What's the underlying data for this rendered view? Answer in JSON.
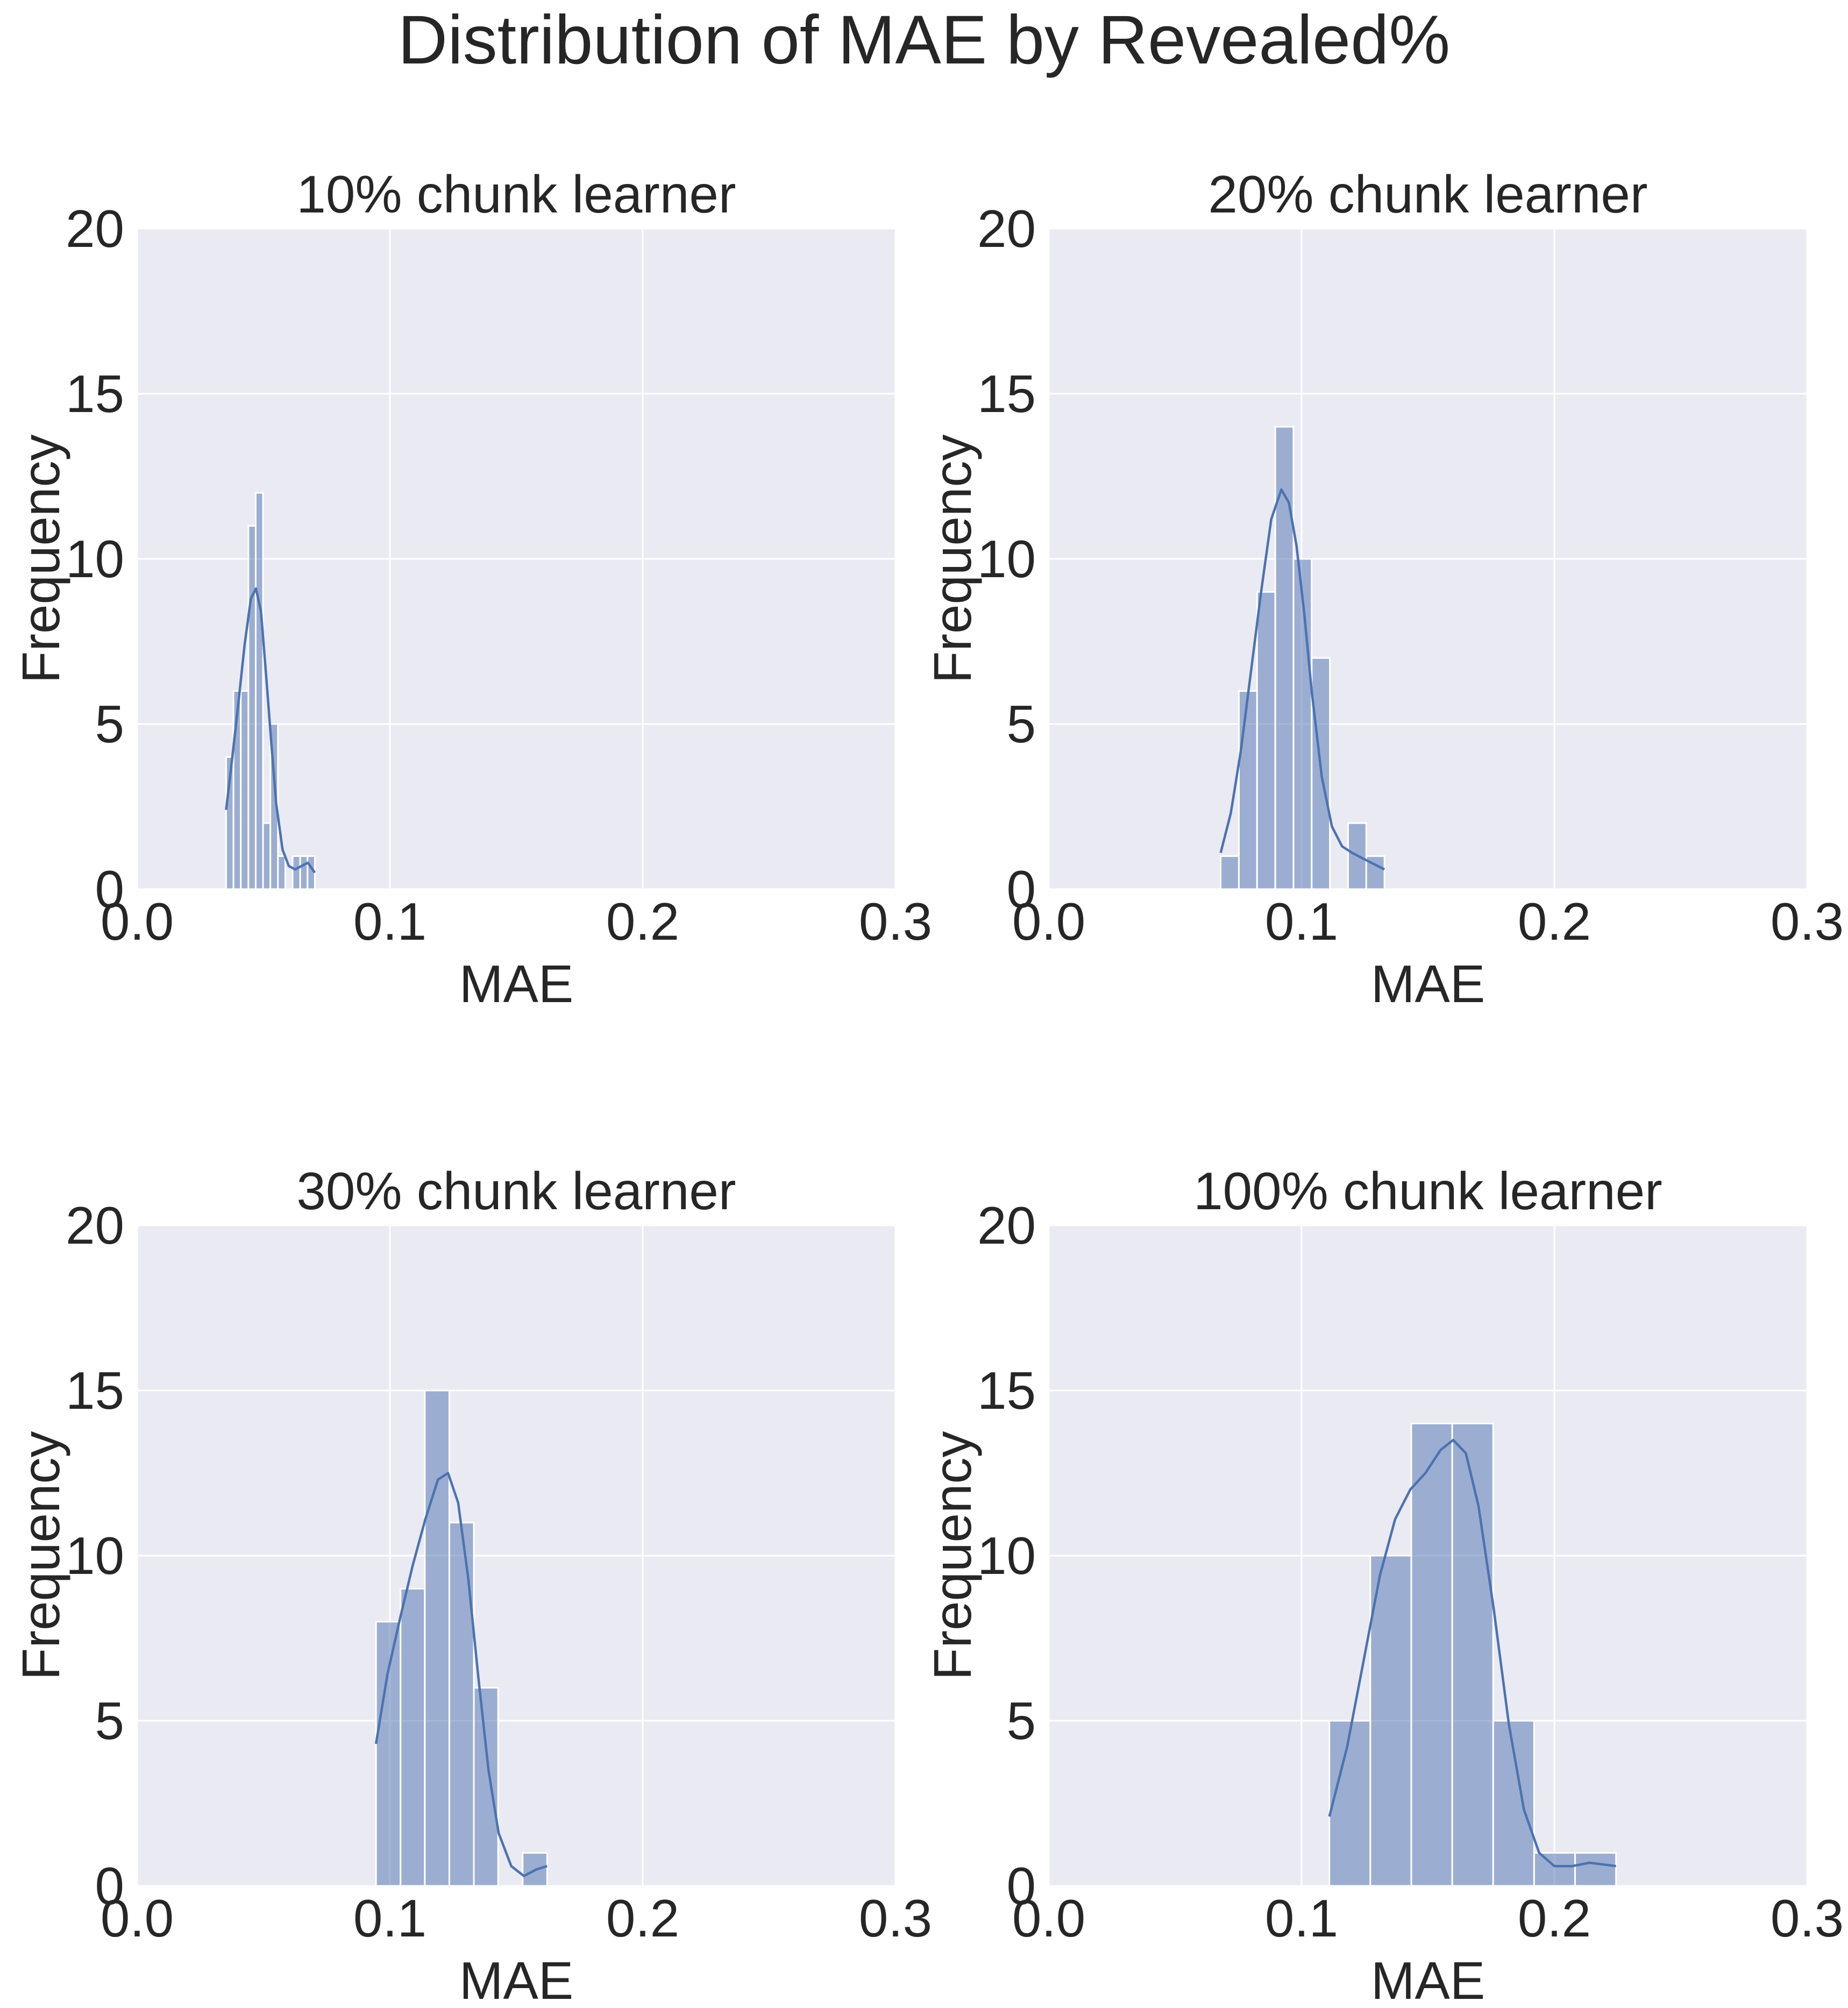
{
  "figure": {
    "title": "Distribution of MAE by Revealed%",
    "colors": {
      "background": "#ffffff",
      "axes_face": "#eaeaf2",
      "grid": "#ffffff",
      "bar_fill": "#4c72b0",
      "bar_opacity": 0.5,
      "kde_line": "#4c72b0",
      "text": "#262626"
    }
  },
  "chart_data": [
    {
      "type": "bar",
      "subtype": "histogram_with_kde",
      "title": "10% chunk learner",
      "xlabel": "MAE",
      "ylabel": "Frequency",
      "xlim": [
        0.0,
        0.3
      ],
      "ylim": [
        0,
        20
      ],
      "xticks": [
        "0.0",
        "0.1",
        "0.2",
        "0.3"
      ],
      "yticks": [
        "0",
        "5",
        "10",
        "15",
        "20"
      ],
      "grid": true,
      "bins": [
        {
          "x0": 0.0352,
          "x1": 0.0381,
          "count": 4
        },
        {
          "x0": 0.0381,
          "x1": 0.041,
          "count": 6
        },
        {
          "x0": 0.041,
          "x1": 0.044,
          "count": 6
        },
        {
          "x0": 0.044,
          "x1": 0.0469,
          "count": 11
        },
        {
          "x0": 0.0469,
          "x1": 0.0498,
          "count": 12
        },
        {
          "x0": 0.0498,
          "x1": 0.0527,
          "count": 2
        },
        {
          "x0": 0.0527,
          "x1": 0.0557,
          "count": 5
        },
        {
          "x0": 0.0557,
          "x1": 0.0586,
          "count": 1
        },
        {
          "x0": 0.0586,
          "x1": 0.0615,
          "count": 0
        },
        {
          "x0": 0.0615,
          "x1": 0.0645,
          "count": 1
        },
        {
          "x0": 0.0645,
          "x1": 0.0674,
          "count": 1
        },
        {
          "x0": 0.0674,
          "x1": 0.0703,
          "count": 1
        }
      ],
      "kde": {
        "x": [
          0.0352,
          0.0375,
          0.04,
          0.0425,
          0.045,
          0.047,
          0.049,
          0.051,
          0.053,
          0.055,
          0.0575,
          0.06,
          0.0625,
          0.065,
          0.0675,
          0.0703
        ],
        "y": [
          2.4,
          3.9,
          5.6,
          7.4,
          8.8,
          9.1,
          8.4,
          6.5,
          4.5,
          2.6,
          1.2,
          0.7,
          0.6,
          0.7,
          0.8,
          0.5
        ]
      }
    },
    {
      "type": "bar",
      "subtype": "histogram_with_kde",
      "title": "20% chunk learner",
      "xlabel": "MAE",
      "ylabel": "Frequency",
      "xlim": [
        0.0,
        0.3
      ],
      "ylim": [
        0,
        20
      ],
      "xticks": [
        "0.0",
        "0.1",
        "0.2",
        "0.3"
      ],
      "yticks": [
        "0",
        "5",
        "10",
        "15",
        "20"
      ],
      "grid": true,
      "bins": [
        {
          "x0": 0.068,
          "x1": 0.0752,
          "count": 1
        },
        {
          "x0": 0.0752,
          "x1": 0.0824,
          "count": 6
        },
        {
          "x0": 0.0824,
          "x1": 0.0896,
          "count": 9
        },
        {
          "x0": 0.0896,
          "x1": 0.0968,
          "count": 14
        },
        {
          "x0": 0.0968,
          "x1": 0.104,
          "count": 10
        },
        {
          "x0": 0.104,
          "x1": 0.1112,
          "count": 7
        },
        {
          "x0": 0.1112,
          "x1": 0.1184,
          "count": 0
        },
        {
          "x0": 0.1184,
          "x1": 0.1256,
          "count": 2
        },
        {
          "x0": 0.1256,
          "x1": 0.1328,
          "count": 1
        }
      ],
      "kde": {
        "x": [
          0.068,
          0.072,
          0.076,
          0.08,
          0.084,
          0.088,
          0.092,
          0.095,
          0.098,
          0.101,
          0.104,
          0.108,
          0.112,
          0.116,
          0.12,
          0.125,
          0.1328
        ],
        "y": [
          1.1,
          2.3,
          4.2,
          6.6,
          9.0,
          11.2,
          12.1,
          11.7,
          10.4,
          8.4,
          6.0,
          3.4,
          1.9,
          1.3,
          1.1,
          0.9,
          0.6
        ]
      }
    },
    {
      "type": "bar",
      "subtype": "histogram_with_kde",
      "title": "30% chunk learner",
      "xlabel": "MAE",
      "ylabel": "Frequency",
      "xlim": [
        0.0,
        0.3
      ],
      "ylim": [
        0,
        20
      ],
      "xticks": [
        "0.0",
        "0.1",
        "0.2",
        "0.3"
      ],
      "yticks": [
        "0",
        "5",
        "10",
        "15",
        "20"
      ],
      "grid": true,
      "bins": [
        {
          "x0": 0.0945,
          "x1": 0.1042,
          "count": 8
        },
        {
          "x0": 0.1042,
          "x1": 0.1138,
          "count": 9
        },
        {
          "x0": 0.1138,
          "x1": 0.1235,
          "count": 15
        },
        {
          "x0": 0.1235,
          "x1": 0.1332,
          "count": 11
        },
        {
          "x0": 0.1332,
          "x1": 0.1428,
          "count": 6
        },
        {
          "x0": 0.1428,
          "x1": 0.1525,
          "count": 0
        },
        {
          "x0": 0.1525,
          "x1": 0.1622,
          "count": 1
        }
      ],
      "kde": {
        "x": [
          0.0945,
          0.099,
          0.104,
          0.109,
          0.114,
          0.119,
          0.123,
          0.127,
          0.131,
          0.135,
          0.139,
          0.143,
          0.148,
          0.153,
          0.158,
          0.1622
        ],
        "y": [
          4.3,
          6.4,
          8.1,
          9.7,
          11.1,
          12.3,
          12.5,
          11.6,
          9.3,
          6.3,
          3.5,
          1.6,
          0.6,
          0.3,
          0.5,
          0.6
        ]
      }
    },
    {
      "type": "bar",
      "subtype": "histogram_with_kde",
      "title": "100% chunk learner",
      "xlabel": "MAE",
      "ylabel": "Frequency",
      "xlim": [
        0.0,
        0.3
      ],
      "ylim": [
        0,
        20
      ],
      "xticks": [
        "0.0",
        "0.1",
        "0.2",
        "0.3"
      ],
      "yticks": [
        "0",
        "5",
        "10",
        "15",
        "20"
      ],
      "grid": true,
      "bins": [
        {
          "x0": 0.111,
          "x1": 0.1272,
          "count": 5
        },
        {
          "x0": 0.1272,
          "x1": 0.1434,
          "count": 10
        },
        {
          "x0": 0.1434,
          "x1": 0.1596,
          "count": 14
        },
        {
          "x0": 0.1596,
          "x1": 0.1758,
          "count": 14
        },
        {
          "x0": 0.1758,
          "x1": 0.192,
          "count": 5
        },
        {
          "x0": 0.192,
          "x1": 0.2082,
          "count": 1
        },
        {
          "x0": 0.2082,
          "x1": 0.2244,
          "count": 1
        }
      ],
      "kde": {
        "x": [
          0.111,
          0.118,
          0.125,
          0.131,
          0.137,
          0.143,
          0.149,
          0.155,
          0.16,
          0.165,
          0.17,
          0.176,
          0.182,
          0.188,
          0.194,
          0.2,
          0.207,
          0.214,
          0.2244
        ],
        "y": [
          2.1,
          4.2,
          7.0,
          9.4,
          11.1,
          12.0,
          12.5,
          13.2,
          13.5,
          13.1,
          11.5,
          8.4,
          4.9,
          2.3,
          1.0,
          0.6,
          0.6,
          0.7,
          0.6
        ]
      }
    }
  ]
}
